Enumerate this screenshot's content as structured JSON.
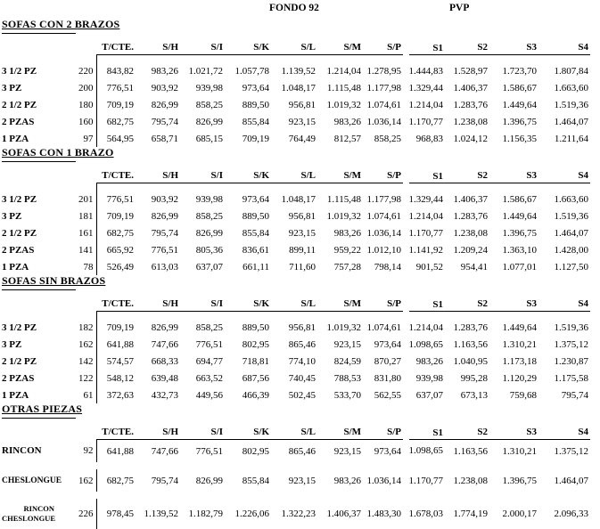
{
  "page": {
    "fondo_header": "FONDO 92",
    "pvp_header": "PVP",
    "background_color": "#ffffff",
    "text_color": "#000000"
  },
  "columns": [
    "T/CTE.",
    "S/H",
    "S/I",
    "S/K",
    "S/L",
    "S/M",
    "S/P",
    "S1",
    "S2",
    "S3",
    "S4"
  ],
  "sections": [
    {
      "title": "SOFAS CON 2 BRAZOS",
      "spaced": false,
      "rows": [
        {
          "label": "3 1/2 PZ",
          "qty": "220",
          "values": [
            "843,82",
            "983,26",
            "1.021,72",
            "1.057,78",
            "1.139,52",
            "1.214,04",
            "1.278,95",
            "1.444,83",
            "1.528,97",
            "1.723,70",
            "1.807,84"
          ]
        },
        {
          "label": "3 PZ",
          "qty": "200",
          "values": [
            "776,51",
            "903,92",
            "939,98",
            "973,64",
            "1.048,17",
            "1.115,48",
            "1.177,98",
            "1.329,44",
            "1.406,37",
            "1.586,67",
            "1.663,60"
          ]
        },
        {
          "label": "2 1/2 PZ",
          "qty": "180",
          "values": [
            "709,19",
            "826,99",
            "858,25",
            "889,50",
            "956,81",
            "1.019,32",
            "1.074,61",
            "1.214,04",
            "1.283,76",
            "1.449,64",
            "1.519,36"
          ]
        },
        {
          "label": "2 PZAS",
          "qty": "160",
          "values": [
            "682,75",
            "795,74",
            "826,99",
            "855,84",
            "923,15",
            "983,26",
            "1.036,14",
            "1.170,77",
            "1.238,08",
            "1.396,75",
            "1.464,07"
          ]
        },
        {
          "label": "1 PZA",
          "qty": "97",
          "values": [
            "564,95",
            "658,71",
            "685,15",
            "709,19",
            "764,49",
            "812,57",
            "858,25",
            "968,83",
            "1.024,12",
            "1.156,35",
            "1.211,64"
          ]
        }
      ]
    },
    {
      "title": "SOFAS CON 1 BRAZO",
      "spaced": false,
      "rows": [
        {
          "label": "3 1/2 PZ",
          "qty": "201",
          "values": [
            "776,51",
            "903,92",
            "939,98",
            "973,64",
            "1.048,17",
            "1.115,48",
            "1.177,98",
            "1.329,44",
            "1.406,37",
            "1.586,67",
            "1.663,60"
          ]
        },
        {
          "label": "3 PZ",
          "qty": "181",
          "values": [
            "709,19",
            "826,99",
            "858,25",
            "889,50",
            "956,81",
            "1.019,32",
            "1.074,61",
            "1.214,04",
            "1.283,76",
            "1.449,64",
            "1.519,36"
          ]
        },
        {
          "label": "2 1/2 PZ",
          "qty": "161",
          "values": [
            "682,75",
            "795,74",
            "826,99",
            "855,84",
            "923,15",
            "983,26",
            "1.036,14",
            "1.170,77",
            "1.238,08",
            "1.396,75",
            "1.464,07"
          ]
        },
        {
          "label": "2 PZAS",
          "qty": "141",
          "values": [
            "665,92",
            "776,51",
            "805,36",
            "836,61",
            "899,11",
            "959,22",
            "1.012,10",
            "1.141,92",
            "1.209,24",
            "1.363,10",
            "1.428,00"
          ]
        },
        {
          "label": "1 PZA",
          "qty": "78",
          "values": [
            "526,49",
            "613,03",
            "637,07",
            "661,11",
            "711,60",
            "757,28",
            "798,14",
            "901,52",
            "954,41",
            "1.077,01",
            "1.127,50"
          ]
        }
      ]
    },
    {
      "title": "SOFAS SIN BRAZOS",
      "spaced": false,
      "rows": [
        {
          "label": "3 1/2 PZ",
          "qty": "182",
          "values": [
            "709,19",
            "826,99",
            "858,25",
            "889,50",
            "956,81",
            "1.019,32",
            "1.074,61",
            "1.214,04",
            "1.283,76",
            "1.449,64",
            "1.519,36"
          ]
        },
        {
          "label": "3 PZ",
          "qty": "162",
          "values": [
            "641,88",
            "747,66",
            "776,51",
            "802,95",
            "865,46",
            "923,15",
            "973,64",
            "1.098,65",
            "1.163,56",
            "1.310,21",
            "1.375,12"
          ]
        },
        {
          "label": "2 1/2 PZ",
          "qty": "142",
          "values": [
            "574,57",
            "668,33",
            "694,77",
            "718,81",
            "774,10",
            "824,59",
            "870,27",
            "983,26",
            "1.040,95",
            "1.173,18",
            "1.230,87"
          ]
        },
        {
          "label": "2 PZAS",
          "qty": "122",
          "values": [
            "548,12",
            "639,48",
            "663,52",
            "687,56",
            "740,45",
            "788,53",
            "831,80",
            "939,98",
            "995,28",
            "1.120,29",
            "1.175,58"
          ]
        },
        {
          "label": "1 PZA",
          "qty": "61",
          "values": [
            "372,63",
            "432,73",
            "449,56",
            "466,39",
            "502,45",
            "533,70",
            "562,55",
            "637,07",
            "673,13",
            "759,68",
            "795,74"
          ]
        }
      ]
    },
    {
      "title": "OTRAS PIEZAS",
      "spaced": true,
      "rows": [
        {
          "label": "RINCON",
          "qty": "92",
          "values": [
            "641,88",
            "747,66",
            "776,51",
            "802,95",
            "865,46",
            "923,15",
            "973,64",
            "1.098,65",
            "1.163,56",
            "1.310,21",
            "1.375,12"
          ]
        },
        {
          "label": "CHESLONGUE",
          "label_class": "mid",
          "qty": "162",
          "values": [
            "682,75",
            "795,74",
            "826,99",
            "855,84",
            "923,15",
            "983,26",
            "1.036,14",
            "1.170,77",
            "1.238,08",
            "1.396,75",
            "1.464,07"
          ]
        },
        {
          "label_lines": [
            "RINCON",
            "CHESLONGUE"
          ],
          "label_class": "stack",
          "qty": "226",
          "values": [
            "978,45",
            "1.139,52",
            "1.182,79",
            "1.226,06",
            "1.322,23",
            "1.406,37",
            "1.483,30",
            "1.678,03",
            "1.774,19",
            "2.000,17",
            "2.096,33"
          ]
        }
      ]
    }
  ]
}
